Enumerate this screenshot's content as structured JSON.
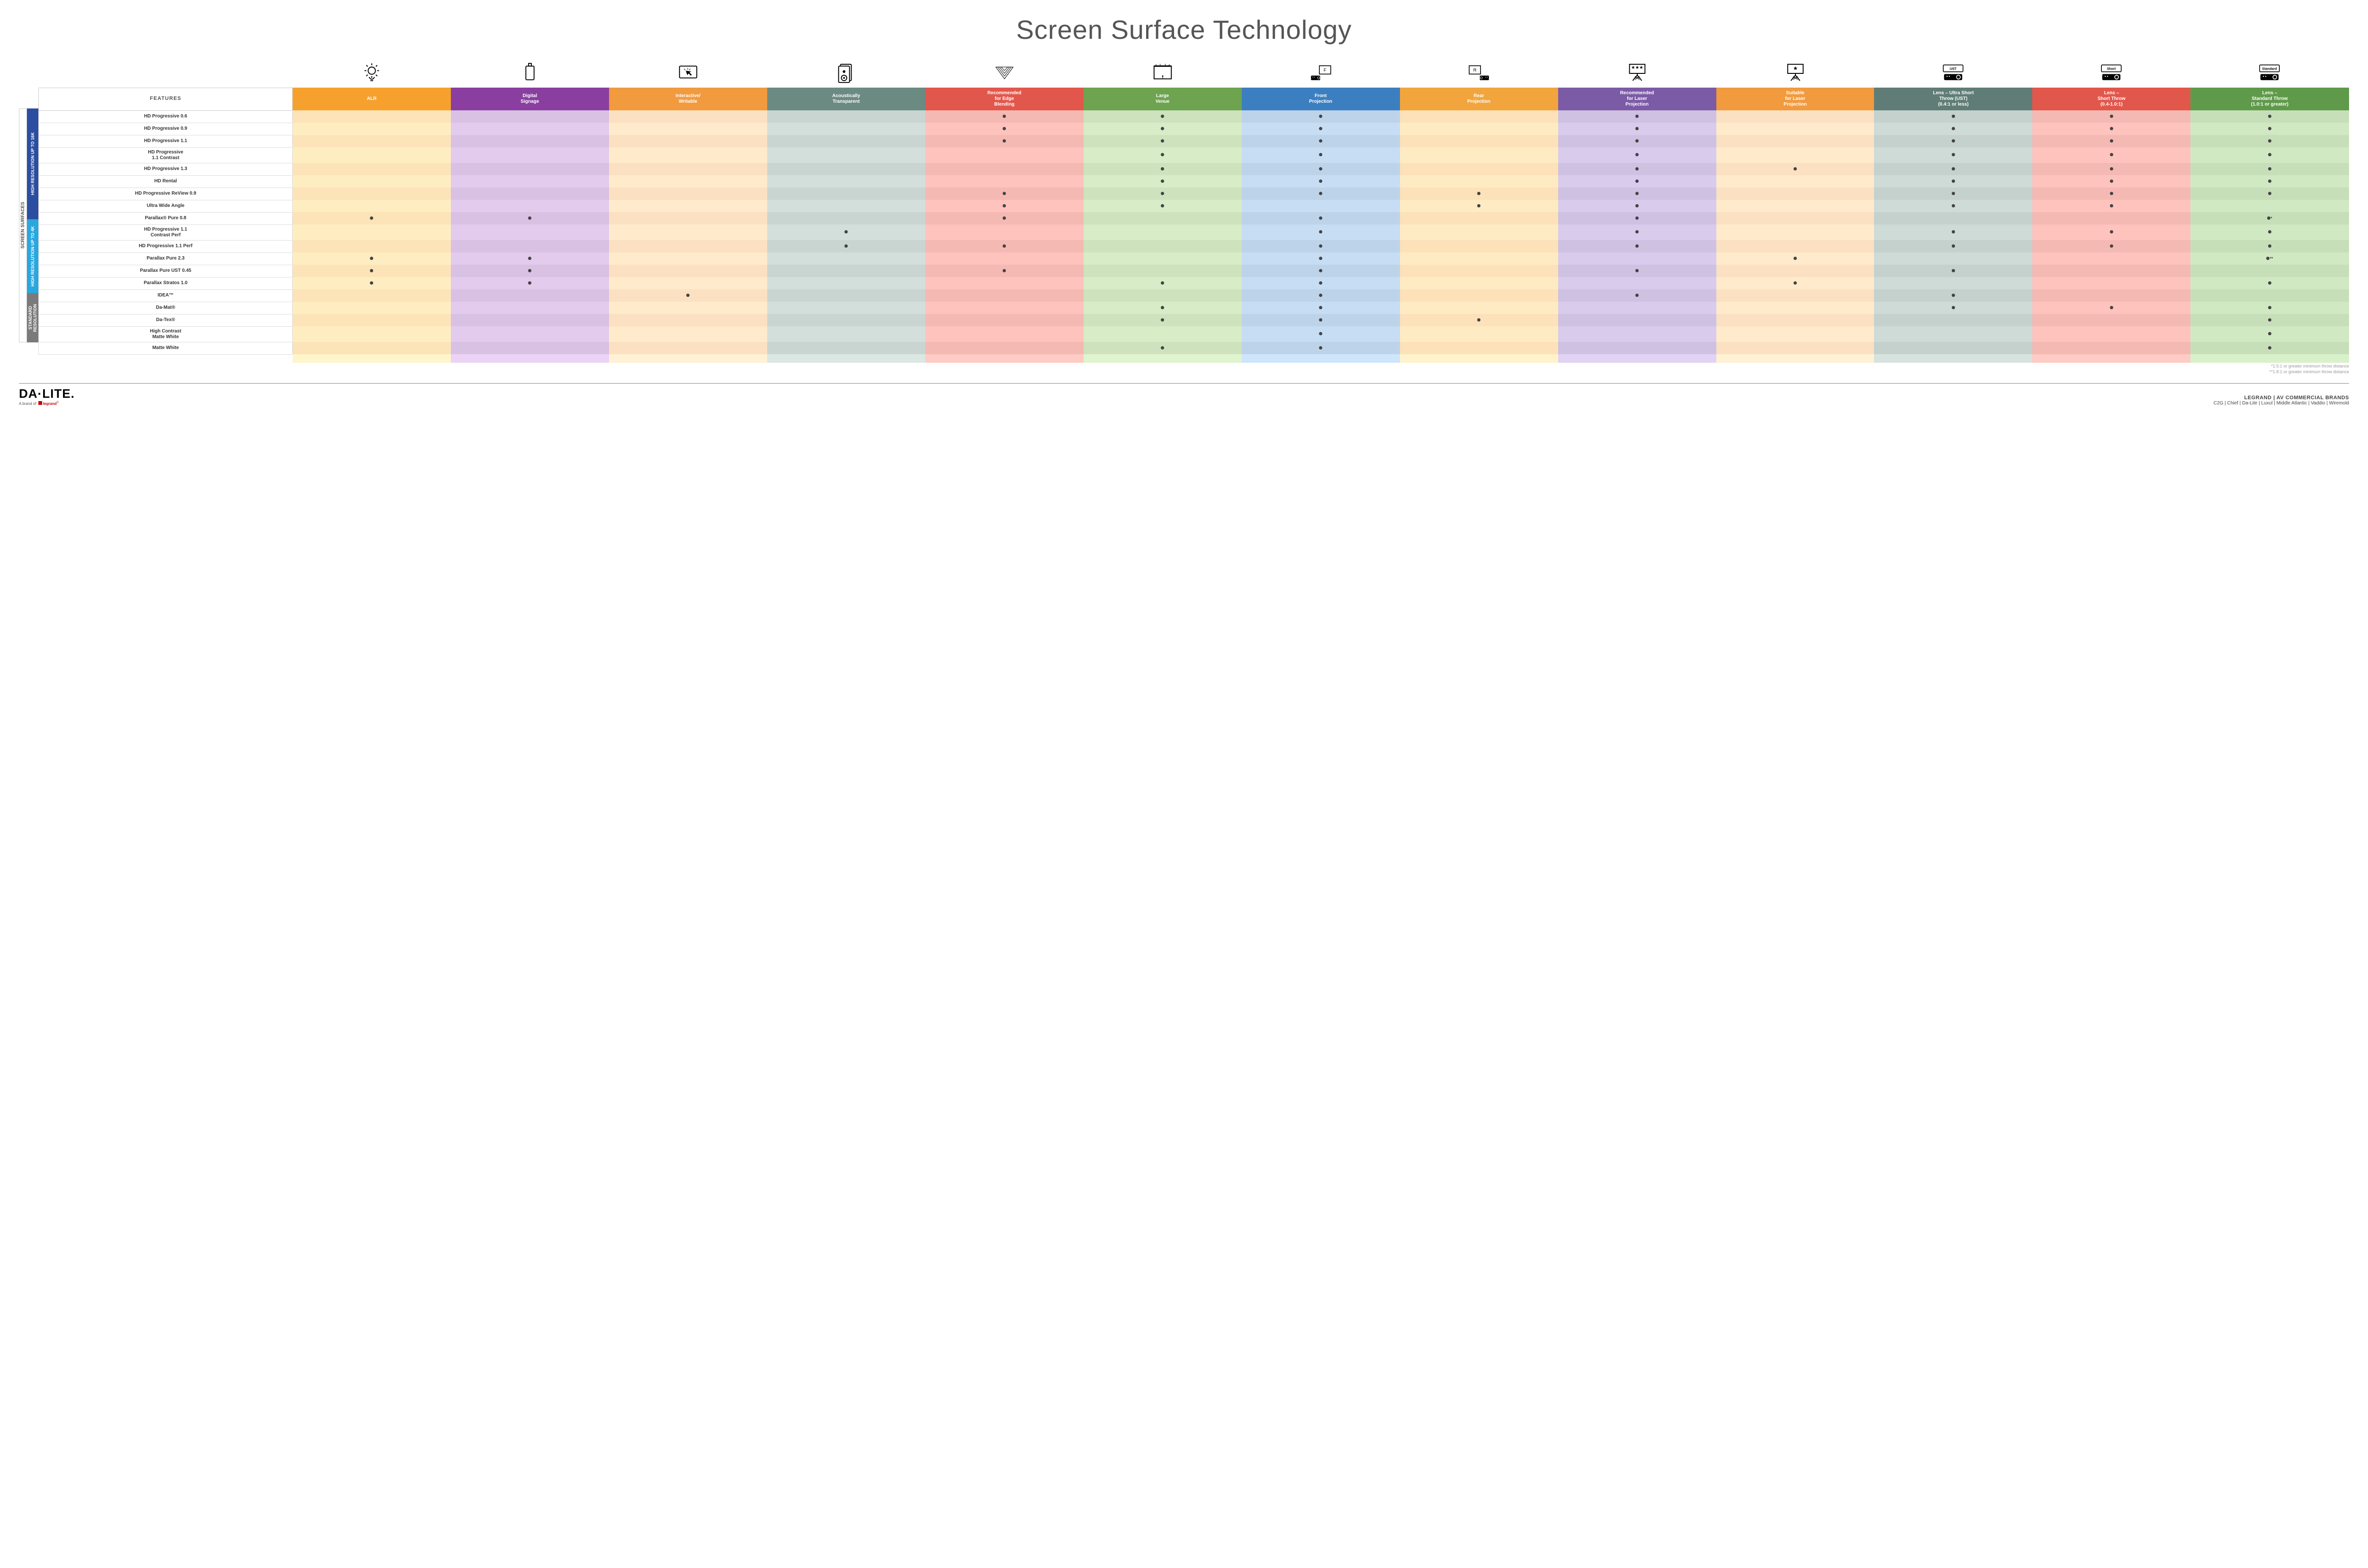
{
  "title": "Screen Surface Technology",
  "side_outer_label": "SCREEN SURFACES",
  "groups": [
    {
      "id": "g16k",
      "label": "HIGH RESOLUTION UP TO 16K",
      "color": "#2b4ea0",
      "rows": 9
    },
    {
      "id": "g4k",
      "label": "HIGH RESOLUTION UP TO 4K",
      "color": "#2aa7df",
      "rows": 6
    },
    {
      "id": "gstd",
      "label": "STANDARD RESOLUTION",
      "color": "#7a7a7a",
      "rows": 4
    }
  ],
  "columns": [
    {
      "key": "features",
      "label": "FEATURES",
      "bg": "#ffffff",
      "light": "#ffffff"
    },
    {
      "key": "alr",
      "label": "ALR",
      "bg": "#f6a12e",
      "light": "#fde3b8"
    },
    {
      "key": "signage",
      "label": "Digital\nSignage",
      "bg": "#8a3fa0",
      "light": "#d9c1e3"
    },
    {
      "key": "interactive",
      "label": "Interactive/\nWritable",
      "bg": "#f19a3e",
      "light": "#fbe0c2"
    },
    {
      "key": "acoustic",
      "label": "Acoustically\nTransparent",
      "bg": "#6b8a82",
      "light": "#c9d5d1"
    },
    {
      "key": "edge",
      "label": "Recommended\nfor Edge\nBlending",
      "bg": "#e2574c",
      "light": "#f4b9b3"
    },
    {
      "key": "large",
      "label": "Large\nVenue",
      "bg": "#6ea34f",
      "light": "#cde2bd"
    },
    {
      "key": "front",
      "label": "Front\nProjection",
      "bg": "#3c7fc1",
      "light": "#bcd3ea"
    },
    {
      "key": "rear",
      "label": "Rear\nProjection",
      "bg": "#f2a53c",
      "light": "#fce1b9"
    },
    {
      "key": "reclaser",
      "label": "Recommended\nfor Laser\nProjection",
      "bg": "#7b5aa6",
      "light": "#cfc1e1"
    },
    {
      "key": "suitlaser",
      "label": "Suitable\nfor Laser\nProjection",
      "bg": "#f19a3e",
      "light": "#fbe0c2"
    },
    {
      "key": "ust",
      "label": "Lens – Ultra Short\nThrow (UST)\n(0.4:1 or less)",
      "bg": "#5f7d76",
      "light": "#c4d1cd"
    },
    {
      "key": "short",
      "label": "Lens –\nShort Throw\n(0.4-1.0:1)",
      "bg": "#e2574c",
      "light": "#f4b9b3"
    },
    {
      "key": "std",
      "label": "Lens –\nStandard Throw\n(1.0:1 or greater)",
      "bg": "#5f9a4a",
      "light": "#c7dfb8"
    }
  ],
  "rows": [
    {
      "label": "HD Progressive 0.6",
      "dots": [
        "edge",
        "large",
        "front",
        "reclaser",
        "ust",
        "short",
        "std"
      ]
    },
    {
      "label": "HD Progressive 0.9",
      "dots": [
        "edge",
        "large",
        "front",
        "reclaser",
        "ust",
        "short",
        "std"
      ]
    },
    {
      "label": "HD Progressive 1.1",
      "dots": [
        "edge",
        "large",
        "front",
        "reclaser",
        "ust",
        "short",
        "std"
      ]
    },
    {
      "label": "HD Progressive\n1.1 Contrast",
      "dots": [
        "large",
        "front",
        "reclaser",
        "ust",
        "short",
        "std"
      ]
    },
    {
      "label": "HD Progressive 1.3",
      "dots": [
        "large",
        "front",
        "reclaser",
        "suitlaser",
        "ust",
        "short",
        "std"
      ]
    },
    {
      "label": "HD Rental",
      "dots": [
        "large",
        "front",
        "reclaser",
        "ust",
        "short",
        "std"
      ]
    },
    {
      "label": "HD Progressive ReView 0.9",
      "dots": [
        "edge",
        "large",
        "front",
        "rear",
        "reclaser",
        "ust",
        "short",
        "std"
      ]
    },
    {
      "label": "Ultra Wide Angle",
      "dots": [
        "edge",
        "large",
        "rear",
        "reclaser",
        "ust",
        "short"
      ]
    },
    {
      "label": "Parallax® Pure 0.8",
      "dots": [
        "alr",
        "signage",
        "edge",
        "front",
        "reclaser"
      ],
      "special": {
        "std": "•*"
      }
    },
    {
      "label": "HD Progressive 1.1\nContrast Perf",
      "dots": [
        "acoustic",
        "front",
        "reclaser",
        "ust",
        "short",
        "std"
      ]
    },
    {
      "label": "HD Progressive 1.1 Perf",
      "dots": [
        "acoustic",
        "edge",
        "front",
        "reclaser",
        "ust",
        "short",
        "std"
      ]
    },
    {
      "label": "Parallax Pure 2.3",
      "dots": [
        "alr",
        "signage",
        "front",
        "suitlaser"
      ],
      "special": {
        "std": "•**"
      }
    },
    {
      "label": "Parallax Pure UST 0.45",
      "dots": [
        "alr",
        "signage",
        "edge",
        "front",
        "reclaser",
        "ust"
      ]
    },
    {
      "label": "Parallax Stratos 1.0",
      "dots": [
        "alr",
        "signage",
        "large",
        "front",
        "suitlaser",
        "std"
      ]
    },
    {
      "label": "IDEA™",
      "dots": [
        "interactive",
        "front",
        "reclaser",
        "ust"
      ]
    },
    {
      "label": "Da-Mat®",
      "dots": [
        "large",
        "front",
        "ust",
        "short",
        "std"
      ]
    },
    {
      "label": "Da-Tex®",
      "dots": [
        "large",
        "front",
        "rear",
        "std"
      ]
    },
    {
      "label": "High Contrast\nMatte White",
      "dots": [
        "front",
        "std"
      ]
    },
    {
      "label": "Matte White",
      "dots": [
        "large",
        "front",
        "std"
      ]
    }
  ],
  "footnotes": [
    "*1.5:1 or greater minimum throw distance",
    "**1.8:1 or greater minimum throw distance"
  ],
  "footer": {
    "logo_main": "DA·LITE.",
    "logo_sub_prefix": "A brand of ",
    "logo_sub_brand": "legrand",
    "brands_title": "LEGRAND | AV COMMERCIAL BRANDS",
    "brands_list": "C2G  |  Chief  |  Da-Lite  |  Luxul  |  Middle Atlantic  |  Vaddio  |  Wiremold"
  },
  "icons": {
    "ust_label": "UST",
    "short_label": "Short",
    "std_label": "Standard"
  }
}
